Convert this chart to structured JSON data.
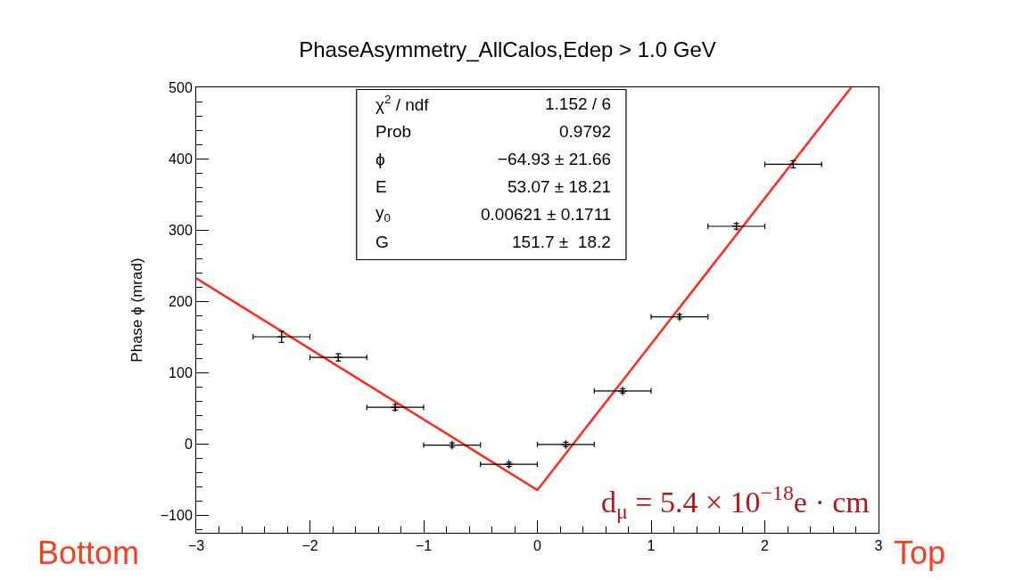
{
  "chart_data": {
    "type": "scatter",
    "title": "PhaseAsymmetry_AllCalos,Edep > 1.0 GeV",
    "ylabel": "Phase ϕ (mrad)",
    "xlim": [
      -3,
      3
    ],
    "xticks": [
      {
        "value": -3,
        "label": "−3"
      },
      {
        "value": -2,
        "label": "−2"
      },
      {
        "value": -1,
        "label": "−1"
      },
      0,
      1,
      2,
      3
    ],
    "ylim": [
      -125,
      500
    ],
    "yticks": [
      {
        "value": -100,
        "label": "−100"
      },
      0,
      100,
      200,
      300,
      400,
      500
    ],
    "grid": false,
    "legend": false,
    "series": [
      {
        "color": "#000000",
        "marker": "cross",
        "x": [
          -2.25,
          -1.75,
          -1.25,
          -0.75,
          -0.25,
          0.25,
          0.75,
          1.25,
          1.75,
          2.25
        ],
        "values": [
          150,
          121,
          51,
          -2,
          -29,
          -1,
          74,
          178,
          305,
          392
        ],
        "errors": [
          8,
          5,
          4,
          3,
          3,
          3,
          3,
          3,
          4,
          5
        ],
        "xerrors": [
          0.25,
          0.25,
          0.25,
          0.25,
          0.25,
          0.25,
          0.25,
          0.25,
          0.25,
          0.25
        ]
      },
      {
        "type": "line",
        "color": "#ff2a1a",
        "x": [
          -3,
          0,
          2.76
        ],
        "values": [
          232,
          -65,
          500
        ],
        "line_style": "solid",
        "marker": "none"
      }
    ],
    "annotations": [
      "χ$^{2}$ / ndf",
      "1.152 / 6",
      "Prob",
      "0.9792",
      "ϕ",
      "−64.93 ± 21.66",
      "E",
      "53.07 ± 18.21",
      "y$_{0}$",
      "0.00621 ± 0.1711",
      "G",
      "151.7 ±  18.2",
      "d$_{μ}$ = 5.4 × 10$^{−18}$e · cm",
      "Bottom",
      "Top"
    ]
  }
}
